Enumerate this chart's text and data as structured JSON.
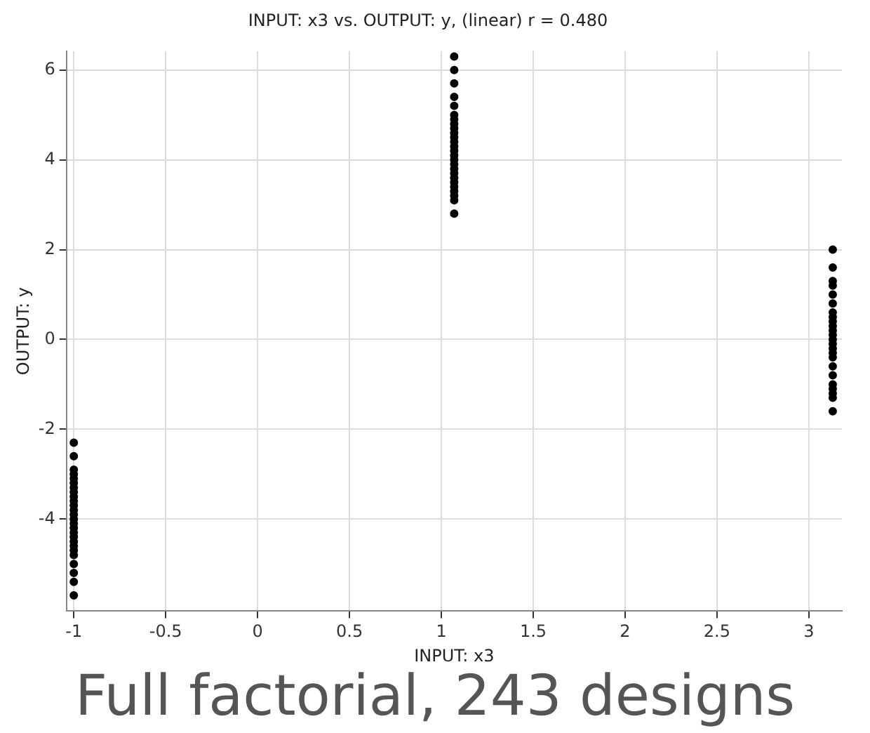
{
  "chart_data": {
    "type": "scatter",
    "title": "INPUT: x3 vs. OUTPUT: y, (linear) r = 0.480",
    "xlabel": "INPUT: x3",
    "ylabel": "OUTPUT: y",
    "annotations": [
      "Full factorial, 243 designs"
    ],
    "x": [
      -1,
      -1,
      -1,
      -1,
      -1,
      -1,
      -1,
      -1,
      -1,
      -1,
      -1,
      -1,
      -1,
      -1,
      -1,
      -1,
      -1,
      -1,
      -1,
      -1,
      -1,
      -1,
      -1,
      -1,
      -1,
      -1,
      1.07,
      1.07,
      1.07,
      1.07,
      1.07,
      1.07,
      1.07,
      1.07,
      1.07,
      1.07,
      1.07,
      1.07,
      1.07,
      1.07,
      1.07,
      1.07,
      1.07,
      1.07,
      1.07,
      1.07,
      1.07,
      1.07,
      1.07,
      1.07,
      1.07,
      1.07,
      3.13,
      3.13,
      3.13,
      3.13,
      3.13,
      3.13,
      3.13,
      3.13,
      3.13,
      3.13,
      3.13,
      3.13,
      3.13,
      3.13,
      3.13,
      3.13,
      3.13,
      3.13,
      3.13,
      3.13,
      3.13,
      3.13,
      3.13,
      3.13
    ],
    "series": [
      {
        "color": "#000000",
        "values": [
          -2.3,
          -2.6,
          -2.9,
          -3.0,
          -3.1,
          -3.2,
          -3.3,
          -3.4,
          -3.5,
          -3.6,
          -3.7,
          -3.8,
          -3.9,
          -4.0,
          -4.1,
          -4.2,
          -4.3,
          -4.4,
          -4.5,
          -4.6,
          -4.7,
          -4.8,
          -5.0,
          -5.2,
          -5.4,
          -5.7,
          2.8,
          3.1,
          3.2,
          3.3,
          3.4,
          3.5,
          3.6,
          3.7,
          3.8,
          3.9,
          4.0,
          4.1,
          4.2,
          4.3,
          4.4,
          4.5,
          4.6,
          4.7,
          4.8,
          4.9,
          5.0,
          5.2,
          5.4,
          5.7,
          6.0,
          6.3,
          -1.6,
          -1.3,
          -1.2,
          -1.1,
          -1.0,
          -0.8,
          -0.6,
          -0.4,
          -0.3,
          -0.2,
          -0.1,
          0.0,
          0.1,
          0.2,
          0.3,
          0.4,
          0.5,
          0.6,
          0.8,
          1.0,
          1.2,
          1.3,
          1.6,
          2.0
        ]
      }
    ],
    "xlim": [
      -1.04,
      3.18
    ],
    "xticks": [
      -1,
      -0.5,
      0,
      0.5,
      1,
      1.5,
      2,
      2.5,
      3
    ],
    "ylim": [
      -6.05,
      6.42
    ],
    "yticks": [
      -4,
      -2,
      0,
      2,
      4,
      6
    ],
    "grid": true,
    "marker": "circle",
    "legend": false
  }
}
